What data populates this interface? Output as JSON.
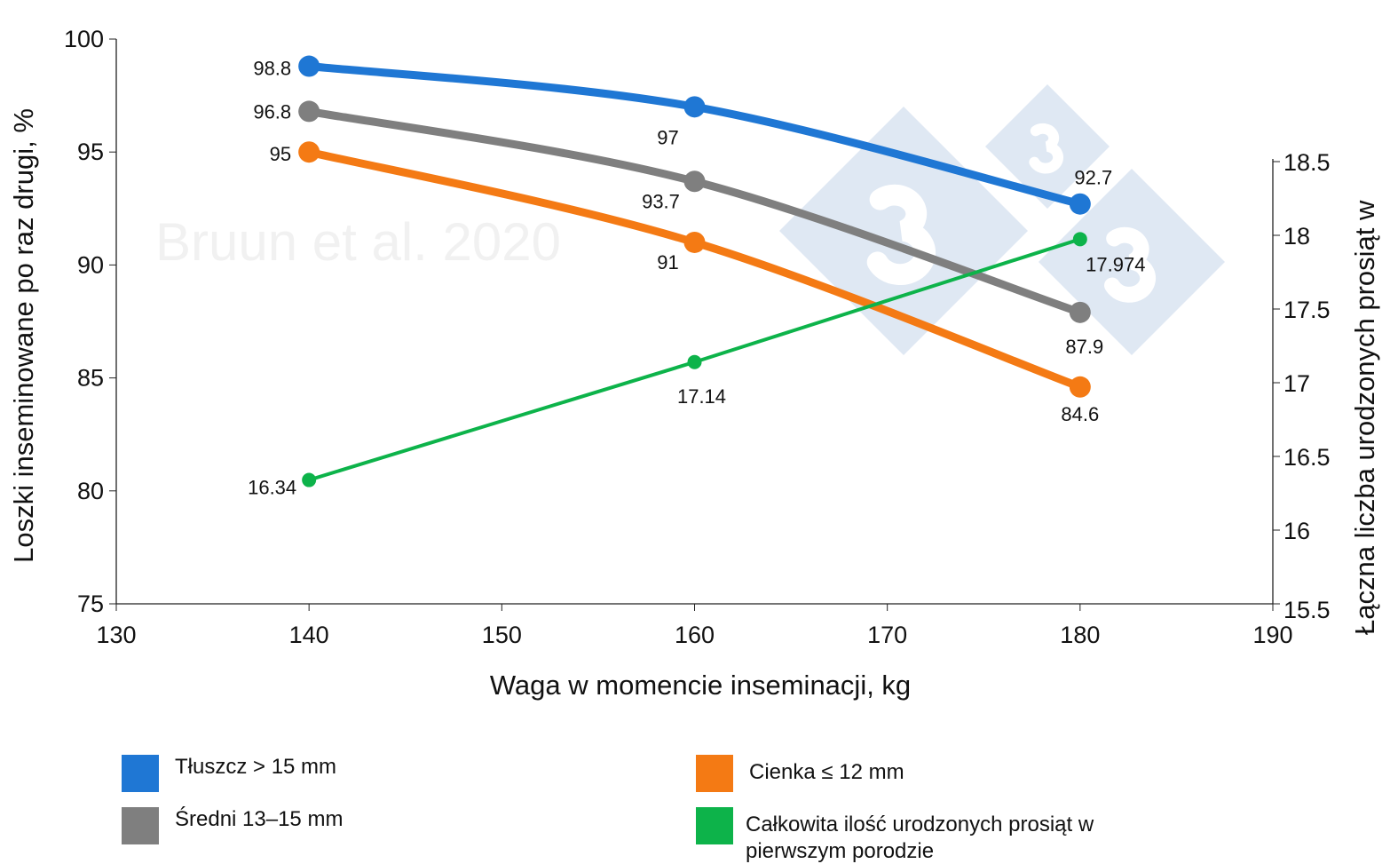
{
  "chart_data": {
    "type": "line",
    "xlabel": "Waga w momencie inseminacji, kg",
    "ylabel": "Loszki inseminowane po raz drugi, %",
    "y2label": "Łączna liczba urodzonych prosiąt w",
    "xlim": [
      130,
      190
    ],
    "ylim": [
      75,
      100
    ],
    "y2lim": [
      15.5,
      18.5
    ],
    "xticks": [
      "130",
      "140",
      "150",
      "160",
      "170",
      "180",
      "190"
    ],
    "yticks": [
      "75",
      "80",
      "85",
      "90",
      "95",
      "100"
    ],
    "y2ticks": [
      "15.5",
      "16",
      "16.5",
      "17",
      "17.5",
      "18",
      "18.5"
    ],
    "grid": false,
    "legend_position": "bottom",
    "watermark": "Bruun et al. 2020",
    "series": [
      {
        "name": "Tłuszcz > 15 mm",
        "color": "#1f77d4",
        "axis": "left",
        "x": [
          140,
          160,
          180
        ],
        "values": [
          98.8,
          97,
          92.7
        ],
        "labels": [
          "98.8",
          "97",
          "92.7"
        ]
      },
      {
        "name": "Średni 13–15 mm",
        "color": "#7f7f7f",
        "axis": "left",
        "x": [
          140,
          160,
          180
        ],
        "values": [
          96.8,
          93.7,
          87.9
        ],
        "labels": [
          "96.8",
          "93.7",
          "87.9"
        ]
      },
      {
        "name": "Cienka ≤ 12 mm",
        "color": "#f47a14",
        "axis": "left",
        "x": [
          140,
          160,
          180
        ],
        "values": [
          95,
          91,
          84.6
        ],
        "labels": [
          "95",
          "91",
          "84.6"
        ]
      },
      {
        "name": "Całkowita ilość urodzonych prosiąt w pierwszym porodzie",
        "color": "#0db34a",
        "axis": "right",
        "x": [
          140,
          160,
          180
        ],
        "values": [
          16.34,
          17.14,
          17.974
        ],
        "labels": [
          "16.34",
          "17.14",
          "17.974"
        ]
      }
    ],
    "legend": [
      {
        "label": "Tłuszcz > 15 mm",
        "color": "#1f77d4"
      },
      {
        "label": "Cienka ≤ 12 mm",
        "color": "#f47a14"
      },
      {
        "label": "Średni 13–15 mm",
        "color": "#7f7f7f"
      },
      {
        "label_line1": "Całkowita ilość urodzonych prosiąt w",
        "label_line2": "pierwszym porodzie",
        "color": "#0db34a"
      }
    ]
  }
}
